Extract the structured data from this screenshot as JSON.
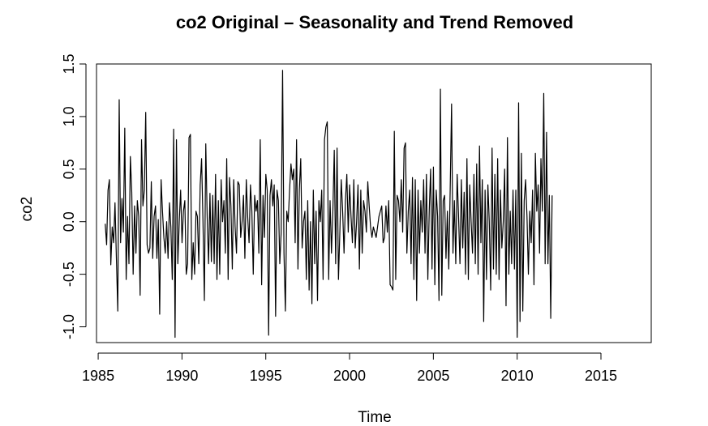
{
  "chart_data": {
    "type": "line",
    "title": "co2 Original – Seasonality and Trend Removed",
    "xlabel": "Time",
    "ylabel": "co2",
    "xlim": [
      1984.9,
      2018.0
    ],
    "ylim": [
      -1.15,
      1.5
    ],
    "x_ticks": [
      1985,
      1990,
      1995,
      2000,
      2005,
      2010,
      2015
    ],
    "x_tick_labels": [
      "1985",
      "1990",
      "1995",
      "2000",
      "2005",
      "2010",
      "2015"
    ],
    "y_ticks": [
      -1.0,
      -0.5,
      0.0,
      0.5,
      1.0,
      1.5
    ],
    "y_tick_labels": [
      "-1.0",
      "-0.5",
      "0.0",
      "0.5",
      "1.0",
      "1.5"
    ],
    "grid": false,
    "legend": "none",
    "series": [
      {
        "color": "#000000",
        "x_start": 1985.42,
        "x_step": 0.083333,
        "values": [
          -0.02,
          -0.22,
          0.3,
          0.4,
          -0.41,
          -0.05,
          -0.2,
          0.18,
          -0.35,
          -0.85,
          1.16,
          -0.2,
          0.22,
          -0.1,
          0.89,
          -0.55,
          0.05,
          -0.4,
          0.62,
          0.28,
          -0.5,
          0.15,
          -0.3,
          0.2,
          0.05,
          -0.7,
          0.78,
          0.15,
          0.3,
          1.04,
          -0.22,
          -0.3,
          -0.25,
          0.38,
          -0.35,
          0.05,
          0.15,
          -0.35,
          0.02,
          -0.88,
          0.4,
          0.1,
          -0.15,
          -0.3,
          0.0,
          -0.35,
          0.18,
          -0.05,
          -0.55,
          0.88,
          -1.1,
          0.78,
          -0.4,
          0.0,
          0.3,
          -0.2,
          0.1,
          0.2,
          -0.5,
          -0.4,
          0.8,
          0.83,
          -0.55,
          -0.2,
          -0.5,
          0.1,
          0.05,
          -0.4,
          0.35,
          0.6,
          0.0,
          -0.75,
          0.74,
          0.05,
          -0.4,
          0.27,
          -0.38,
          0.25,
          -0.4,
          0.45,
          -0.55,
          0.2,
          -0.5,
          0.4,
          0.0,
          0.2,
          -0.3,
          0.6,
          -0.55,
          0.42,
          0.15,
          -0.45,
          0.4,
          -0.05,
          -0.3,
          0.38,
          0.35,
          -0.15,
          0.0,
          0.25,
          -0.35,
          0.4,
          0.05,
          -0.2,
          0.35,
          0.1,
          -0.5,
          0.25,
          0.1,
          0.2,
          -0.3,
          0.78,
          -0.6,
          0.25,
          -0.15,
          0.45,
          0.3,
          -1.08,
          0.25,
          0.4,
          0.15,
          0.35,
          -0.9,
          0.3,
          0.2,
          -0.4,
          -0.1,
          1.44,
          -0.3,
          -0.85,
          0.1,
          0.0,
          0.3,
          0.55,
          0.4,
          0.5,
          -0.2,
          0.78,
          -0.45,
          0.3,
          0.6,
          -0.25,
          0.0,
          0.1,
          -0.55,
          0.2,
          -0.65,
          0.0,
          -0.78,
          0.3,
          -0.4,
          0.1,
          -0.75,
          0.2,
          0.0,
          0.3,
          -0.55,
          0.78,
          0.9,
          0.95,
          -0.55,
          0.2,
          -0.3,
          0.1,
          0.68,
          -0.4,
          0.7,
          -0.55,
          -0.1,
          0.4,
          0.1,
          -0.3,
          0.2,
          0.45,
          -0.1,
          0.35,
          0.05,
          -0.2,
          0.4,
          -0.25,
          0.0,
          0.35,
          -0.45,
          0.3,
          -0.3,
          0.2,
          0.1,
          -0.1,
          0.38,
          0.15,
          -0.05,
          -0.15,
          -0.05,
          -0.1,
          -0.15,
          -0.05,
          0.05,
          0.1,
          0.15,
          -0.2,
          -0.15,
          0.15,
          -0.1,
          0.2,
          -0.6,
          -0.62,
          -0.65,
          0.86,
          -0.55,
          0.25,
          0.2,
          0.0,
          0.4,
          -0.1,
          0.7,
          0.75,
          -0.3,
          0.1,
          0.3,
          -0.4,
          0.42,
          -0.55,
          0.4,
          -0.75,
          0.3,
          -0.3,
          0.2,
          -0.1,
          0.4,
          -0.3,
          0.45,
          -0.55,
          0.1,
          0.5,
          -0.45,
          0.52,
          -0.6,
          0.3,
          0.05,
          -0.75,
          1.26,
          -0.7,
          0.2,
          0.25,
          -0.35,
          0.1,
          -0.45,
          0.3,
          1.12,
          -0.3,
          0.2,
          -0.4,
          0.45,
          0.05,
          -0.4,
          0.4,
          -0.25,
          0.28,
          -0.5,
          0.6,
          -0.55,
          0.35,
          0.0,
          -0.3,
          0.45,
          -0.4,
          0.55,
          -0.5,
          0.72,
          -0.2,
          0.4,
          -0.95,
          0.3,
          -0.55,
          0.35,
          0.0,
          -0.65,
          0.7,
          -0.45,
          0.45,
          -0.5,
          0.6,
          -0.55,
          0.3,
          -0.25,
          0.0,
          0.5,
          -0.8,
          0.8,
          -0.5,
          0.1,
          -0.4,
          0.3,
          -0.45,
          0.3,
          -1.1,
          1.13,
          -0.95,
          0.65,
          -0.85,
          0.2,
          0.4,
          0.05,
          -0.5,
          0.1,
          -0.2,
          0.3,
          -0.6,
          0.65,
          0.1,
          0.35,
          -0.3,
          0.6,
          0.1,
          1.22,
          -0.4,
          0.85,
          -0.4,
          0.25,
          -0.92,
          0.25
        ]
      }
    ]
  }
}
